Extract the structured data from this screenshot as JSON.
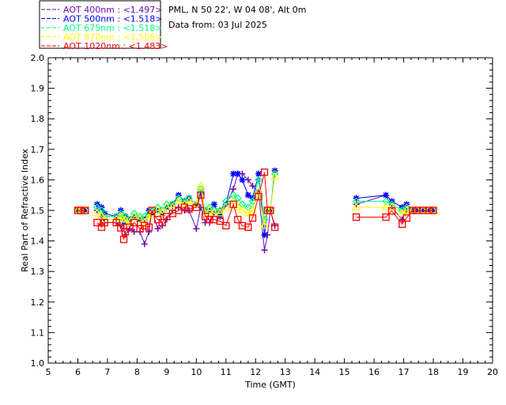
{
  "chart_data": {
    "type": "line",
    "title_lines": [
      "PML, N 50 22', W 04 08', Alt 0m",
      "Data from: 03 Jul 2025"
    ],
    "xlabel": "Time (GMT)",
    "ylabel": "Real Part of Refractive Index",
    "xlim": [
      5,
      20
    ],
    "ylim": [
      1.0,
      2.0
    ],
    "xticks": [
      "5",
      "6",
      "7",
      "8",
      "9",
      "10",
      "11",
      "12",
      "13",
      "14",
      "15",
      "16",
      "17",
      "18",
      "19",
      "20"
    ],
    "yticks": [
      "1.0",
      "1.1",
      "1.2",
      "1.3",
      "1.4",
      "1.5",
      "1.6",
      "1.7",
      "1.8",
      "1.9",
      "2.0"
    ],
    "grid": false,
    "legend_position": "top-left outside",
    "series": [
      {
        "name": "AOT  400nm : <1.497>",
        "color": "#6a0dad",
        "marker": "plus",
        "x": [
          6.0,
          6.1,
          6.25,
          null,
          6.65,
          6.8,
          6.9,
          7.3,
          7.45,
          7.55,
          7.6,
          7.75,
          7.9,
          8.1,
          8.25,
          8.4,
          8.5,
          8.7,
          8.85,
          9.0,
          9.2,
          9.4,
          9.6,
          9.75,
          10.0,
          10.15,
          10.3,
          10.45,
          10.6,
          10.8,
          11.0,
          11.25,
          11.4,
          11.55,
          11.75,
          11.9,
          12.1,
          12.3,
          12.4,
          12.5,
          12.65,
          null,
          15.4,
          16.4,
          16.6,
          16.95,
          17.1,
          17.3,
          17.45,
          17.65,
          17.85,
          18.0
        ],
        "y": [
          1.5,
          1.5,
          1.5,
          null,
          1.5,
          1.48,
          1.46,
          1.46,
          1.45,
          1.44,
          1.42,
          1.44,
          1.43,
          1.43,
          1.39,
          1.43,
          1.5,
          1.44,
          1.45,
          1.47,
          1.5,
          1.51,
          1.5,
          1.5,
          1.44,
          1.51,
          1.46,
          1.46,
          1.49,
          1.5,
          1.52,
          1.57,
          1.62,
          1.62,
          1.6,
          1.58,
          1.56,
          1.37,
          1.42,
          1.5,
          1.45,
          null,
          1.52,
          1.55,
          1.51,
          1.47,
          1.5,
          1.5,
          1.5,
          1.5,
          1.5,
          1.5
        ]
      },
      {
        "name": "AOT  500nm : <1.518>",
        "color": "#0000ff",
        "marker": "star",
        "x": [
          6.0,
          6.1,
          6.25,
          null,
          6.65,
          6.8,
          6.9,
          7.3,
          7.45,
          7.55,
          7.6,
          7.75,
          7.9,
          8.1,
          8.25,
          8.4,
          8.5,
          8.7,
          8.85,
          9.0,
          9.2,
          9.4,
          9.6,
          9.75,
          10.0,
          10.15,
          10.3,
          10.45,
          10.6,
          10.8,
          11.0,
          11.25,
          11.4,
          11.55,
          11.75,
          11.9,
          12.1,
          12.3,
          12.4,
          12.5,
          12.65,
          null,
          15.4,
          16.4,
          16.6,
          16.95,
          17.1,
          17.3,
          17.45,
          17.65,
          17.85,
          18.0
        ],
        "y": [
          1.5,
          1.5,
          1.5,
          null,
          1.52,
          1.51,
          1.49,
          1.48,
          1.5,
          1.46,
          1.48,
          1.47,
          1.48,
          1.47,
          1.47,
          1.5,
          1.49,
          1.5,
          1.49,
          1.51,
          1.52,
          1.55,
          1.53,
          1.54,
          1.52,
          1.56,
          1.5,
          1.5,
          1.52,
          1.48,
          1.52,
          1.62,
          1.62,
          1.6,
          1.55,
          1.54,
          1.62,
          1.42,
          1.5,
          1.5,
          1.63,
          null,
          1.54,
          1.55,
          1.53,
          1.51,
          1.52,
          1.5,
          1.5,
          1.5,
          1.5,
          1.5
        ]
      },
      {
        "name": "AOT  675nm : <1.518>",
        "color": "#00ff80",
        "marker": "diamond",
        "x": [
          6.0,
          6.1,
          6.25,
          null,
          6.65,
          6.8,
          6.9,
          7.3,
          7.45,
          7.55,
          7.6,
          7.75,
          7.9,
          8.1,
          8.25,
          8.4,
          8.5,
          8.7,
          8.85,
          9.0,
          9.2,
          9.4,
          9.6,
          9.75,
          10.0,
          10.15,
          10.3,
          10.45,
          10.6,
          10.8,
          11.0,
          11.25,
          11.4,
          11.55,
          11.75,
          11.9,
          12.1,
          12.3,
          12.4,
          12.5,
          12.65,
          null,
          15.4,
          16.4,
          16.6,
          16.95,
          17.1,
          17.3,
          17.45,
          17.65,
          17.85,
          18.0
        ],
        "y": [
          1.5,
          1.5,
          1.5,
          null,
          1.51,
          1.5,
          1.48,
          1.48,
          1.49,
          1.47,
          1.48,
          1.47,
          1.49,
          1.48,
          1.48,
          1.49,
          1.5,
          1.51,
          1.5,
          1.52,
          1.52,
          1.54,
          1.53,
          1.54,
          1.52,
          1.57,
          1.5,
          1.51,
          1.5,
          1.5,
          1.53,
          1.55,
          1.54,
          1.52,
          1.51,
          1.53,
          1.6,
          1.47,
          1.5,
          1.5,
          1.62,
          null,
          1.53,
          1.53,
          1.52,
          1.5,
          1.51,
          1.5,
          1.5,
          1.5,
          1.5,
          1.5
        ]
      },
      {
        "name": "AOT  870nm : <1.506>",
        "color": "#ffff00",
        "marker": "triangle",
        "x": [
          6.0,
          6.1,
          6.25,
          null,
          6.65,
          6.8,
          6.9,
          7.3,
          7.45,
          7.55,
          7.6,
          7.75,
          7.9,
          8.1,
          8.25,
          8.4,
          8.5,
          8.7,
          8.85,
          9.0,
          9.2,
          9.4,
          9.6,
          9.75,
          10.0,
          10.15,
          10.3,
          10.45,
          10.6,
          10.8,
          11.0,
          11.25,
          11.4,
          11.55,
          11.75,
          11.9,
          12.1,
          12.3,
          12.4,
          12.5,
          12.65,
          null,
          15.4,
          16.4,
          16.6,
          16.95,
          17.1,
          17.3,
          17.45,
          17.65,
          17.85,
          18.0
        ],
        "y": [
          1.5,
          1.5,
          1.5,
          null,
          1.49,
          1.48,
          1.47,
          1.47,
          1.48,
          1.46,
          1.47,
          1.46,
          1.48,
          1.47,
          1.46,
          1.48,
          1.49,
          1.5,
          1.49,
          1.51,
          1.51,
          1.53,
          1.52,
          1.53,
          1.52,
          1.58,
          1.49,
          1.5,
          1.49,
          1.49,
          1.51,
          1.53,
          1.51,
          1.5,
          1.49,
          1.5,
          1.56,
          1.45,
          1.5,
          1.5,
          1.61,
          null,
          1.51,
          1.51,
          1.51,
          1.49,
          1.5,
          1.5,
          1.5,
          1.5,
          1.5,
          1.5
        ]
      },
      {
        "name": "AOT 1020nm : <1.483>",
        "color": "#ff0000",
        "marker": "square",
        "x": [
          6.0,
          6.1,
          6.25,
          null,
          6.65,
          6.8,
          6.9,
          7.3,
          7.45,
          7.55,
          7.6,
          7.75,
          7.9,
          8.1,
          8.25,
          8.4,
          8.5,
          8.7,
          8.85,
          9.0,
          9.2,
          9.4,
          9.6,
          9.75,
          10.0,
          10.15,
          10.3,
          10.45,
          10.6,
          10.8,
          11.0,
          11.25,
          11.4,
          11.55,
          11.75,
          11.9,
          12.1,
          12.3,
          12.4,
          12.5,
          12.65,
          null,
          15.4,
          16.4,
          16.6,
          16.95,
          17.1,
          17.3,
          17.45,
          17.65,
          17.85,
          18.0
        ],
        "y": [
          1.5,
          1.5,
          1.5,
          null,
          1.46,
          1.445,
          1.46,
          1.46,
          1.443,
          1.405,
          1.43,
          1.445,
          1.46,
          1.44,
          1.45,
          1.445,
          1.5,
          1.47,
          1.46,
          1.48,
          1.49,
          1.5,
          1.51,
          1.505,
          1.51,
          1.55,
          1.48,
          1.47,
          1.47,
          1.465,
          1.45,
          1.52,
          1.47,
          1.45,
          1.445,
          1.475,
          1.545,
          1.625,
          1.5,
          1.5,
          1.445,
          null,
          1.478,
          1.478,
          1.498,
          1.455,
          1.475,
          1.5,
          1.5,
          1.5,
          1.5,
          1.5
        ]
      }
    ]
  }
}
